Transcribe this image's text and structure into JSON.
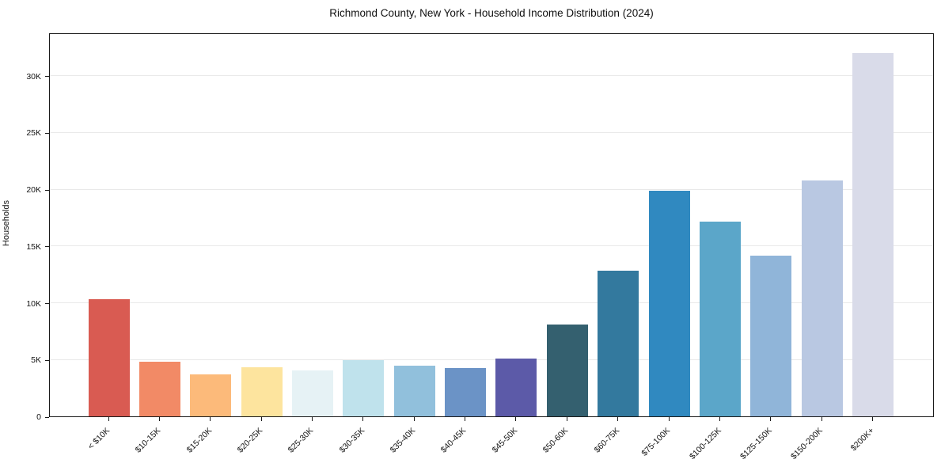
{
  "title": "Richmond County, New York - Household Income Distribution (2024)",
  "chart_data": {
    "type": "bar",
    "title": "Richmond County, New York - Household Income Distribution (2024)",
    "xlabel": "",
    "ylabel": "Households",
    "categories": [
      "< $10K",
      "$10-15K",
      "$15-20K",
      "$20-25K",
      "$25-30K",
      "$30-35K",
      "$35-40K",
      "$40-45K",
      "$45-50K",
      "$50-60K",
      "$60-75K",
      "$75-100K",
      "$100-125K",
      "$125-150K",
      "$150-200K",
      "$200K+"
    ],
    "values": [
      10300,
      4800,
      3700,
      4350,
      4050,
      4980,
      4450,
      4280,
      5080,
      8120,
      12850,
      19880,
      17150,
      14150,
      20750,
      32000
    ],
    "bar_colors": [
      "#d95b52",
      "#f28a66",
      "#fcba7a",
      "#fde49e",
      "#e6f2f5",
      "#bfe2ec",
      "#91c0dc",
      "#6b93c6",
      "#5c5aa8",
      "#34606f",
      "#33799e",
      "#3089c0",
      "#5ba6c9",
      "#90b5d9",
      "#b9c8e2",
      "#d9dbe9"
    ],
    "ylim": [
      0,
      33820
    ],
    "yticks": {
      "values": [
        0,
        5000,
        10000,
        15000,
        20000,
        25000,
        30000
      ],
      "labels": [
        "0",
        "5K",
        "10K",
        "15K",
        "20K",
        "25K",
        "30K"
      ]
    },
    "grid": "horizontal",
    "grid_color": "#e9e9e9",
    "axis_color": "#1a1a1a",
    "background_color": "#ffffff",
    "legend": "none"
  }
}
